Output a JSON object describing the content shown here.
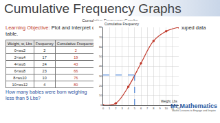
{
  "header": {
    "title": "Cumulative Frequency Graphs",
    "subtitle": "Cumulative Frequency Graphs"
  },
  "objective": {
    "label": "Learning Objective:",
    "text": "Plot and interpret cumulative frequency graphs from a grouped data table."
  },
  "table": {
    "header": [
      "Weight, w, Lbs",
      "Frequency",
      "Cumulative Frequency"
    ],
    "rows": [
      [
        "0<w≤2",
        2,
        2
      ],
      [
        "2<w≤4",
        17,
        19
      ],
      [
        "4<w≤6",
        24,
        43
      ],
      [
        "6<w≤8",
        23,
        66
      ],
      [
        "8<w≤10",
        10,
        76
      ],
      [
        "10<w≤12",
        4,
        80
      ]
    ]
  },
  "question": "How many babies were born weighing less than 5 Lbs?",
  "logo": {
    "name": "Mr Mathematics",
    "tagline": "Maths Lessons to Engage and Inspire"
  },
  "chart_data": {
    "type": "line",
    "x_label": "Weight, Lbs",
    "y_label": "Cumulative Frequency",
    "x": [
      0,
      2,
      4,
      6,
      8,
      10,
      12
    ],
    "values": [
      0,
      2,
      19,
      43,
      66,
      76,
      80
    ],
    "color": "#c0392b",
    "marker": "circle",
    "xlim": [
      0,
      12
    ],
    "ylim": [
      0,
      80
    ],
    "xticks": [
      0,
      1,
      2,
      3,
      4,
      5,
      6,
      7,
      8,
      9,
      10,
      11,
      12
    ],
    "yticks": [
      0,
      10,
      20,
      30,
      40,
      50,
      60,
      70,
      80
    ],
    "grid": true,
    "reading": {
      "x": 5,
      "y": 31
    }
  }
}
